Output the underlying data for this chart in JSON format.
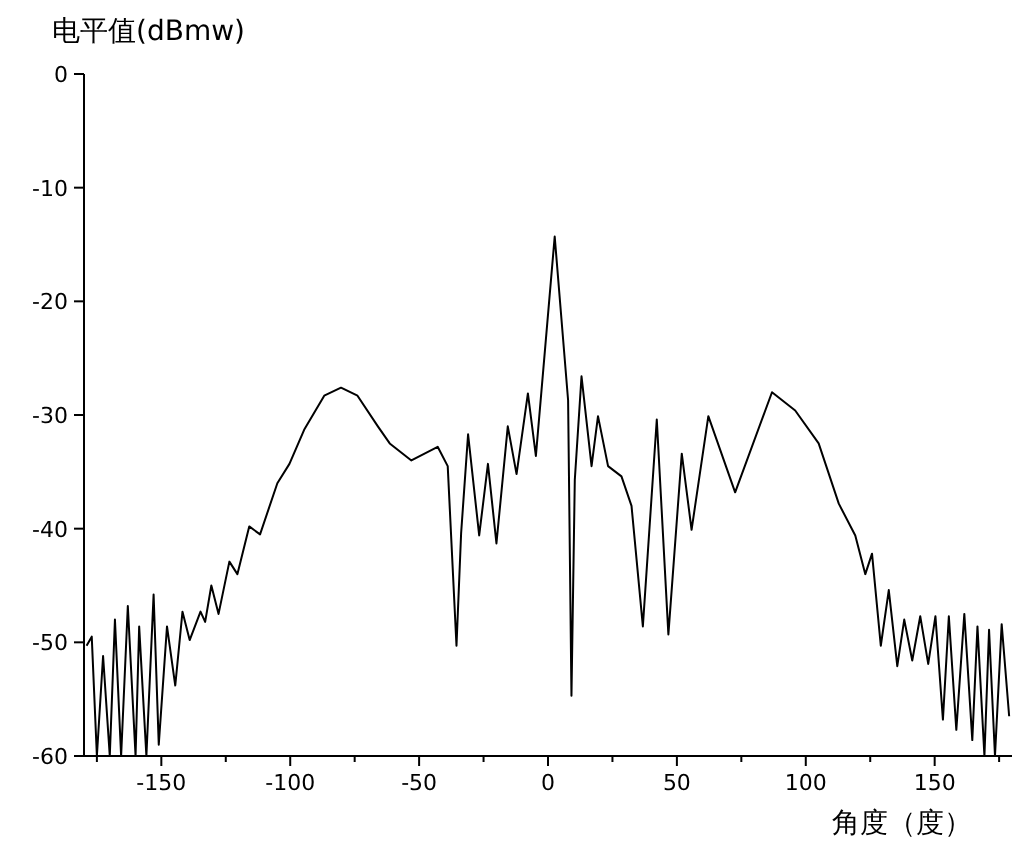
{
  "chart_data": {
    "type": "line",
    "ylabel": "电平值(dBmw)",
    "xlabel": "角度（度）",
    "xlim": [
      -180,
      180
    ],
    "ylim": [
      -60,
      0
    ],
    "xticks": [
      -150,
      -100,
      -50,
      0,
      50,
      100,
      150,
      {
        "value": -175,
        "label": null
      },
      {
        "value": -125,
        "label": null
      },
      {
        "value": -75,
        "label": null
      },
      {
        "value": -25,
        "label": null
      },
      {
        "value": 25,
        "label": null
      },
      {
        "value": 75,
        "label": null
      },
      {
        "value": 125,
        "label": null
      },
      {
        "value": 175,
        "label": null
      }
    ],
    "yticks": [
      0,
      -10,
      -20,
      -30,
      -40,
      -50,
      -60
    ],
    "grid": false,
    "marker": "none",
    "line_style": "solid",
    "series": [
      {
        "color": "#000000",
        "x": [
          -179,
          -177,
          -175,
          -172.6,
          -170,
          -168,
          -165.6,
          -163,
          -160,
          -158.6,
          -155.8,
          -153,
          -151,
          -147.8,
          -144.6,
          -141.8,
          -139,
          -134.8,
          -133,
          -130.6,
          -127.8,
          -123.6,
          -120.5,
          -115.9,
          -111.7,
          -105,
          -100.3,
          -94.6,
          -86.8,
          -80.3,
          -73.9,
          -66,
          -61.4,
          -53,
          -42.8,
          -38.9,
          -35.5,
          -33.7,
          -31,
          -26.7,
          -23.3,
          -20,
          -15.6,
          -12.2,
          -7.8,
          -4.7,
          2.6,
          7.8,
          9.1,
          10.4,
          13,
          16.9,
          19.4,
          23.3,
          28.5,
          32.4,
          36.8,
          42.2,
          46.7,
          51.9,
          55.7,
          62.2,
          72.6,
          86.9,
          95.9,
          105,
          112.8,
          119.2,
          123.1,
          125.7,
          129.1,
          132.2,
          135.5,
          138.2,
          141.3,
          144.4,
          147.5,
          150.3,
          153.2,
          155.5,
          158.4,
          161.5,
          164.6,
          166.6,
          169.3,
          171.1,
          173.4,
          176,
          178.9
        ],
        "values": [
          -50.3,
          -49.5,
          -60,
          -51.2,
          -60,
          -48,
          -60,
          -46.8,
          -60,
          -48.6,
          -60,
          -45.8,
          -59,
          -48.6,
          -53.8,
          -47.3,
          -49.8,
          -47.3,
          -48.2,
          -45,
          -47.5,
          -42.9,
          -44,
          -39.8,
          -40.5,
          -36,
          -34.3,
          -31.3,
          -28.3,
          -27.6,
          -28.3,
          -31,
          -32.5,
          -34,
          -32.8,
          -34.5,
          -50.3,
          -40.4,
          -31.7,
          -40.6,
          -34.3,
          -41.3,
          -31,
          -35.2,
          -28.1,
          -33.6,
          -14.3,
          -28.7,
          -54.7,
          -35.7,
          -26.6,
          -34.5,
          -30.1,
          -34.5,
          -35.4,
          -38,
          -48.6,
          -30.4,
          -49.3,
          -33.4,
          -40.1,
          -30.1,
          -36.8,
          -28,
          -29.6,
          -32.5,
          -37.8,
          -40.6,
          -44,
          -42.2,
          -50.3,
          -45.4,
          -52.1,
          -48,
          -51.6,
          -47.7,
          -51.9,
          -47.7,
          -56.8,
          -47.7,
          -57.7,
          -47.5,
          -58.6,
          -48.6,
          -60,
          -48.9,
          -60,
          -48.4,
          -56.5
        ]
      }
    ]
  }
}
